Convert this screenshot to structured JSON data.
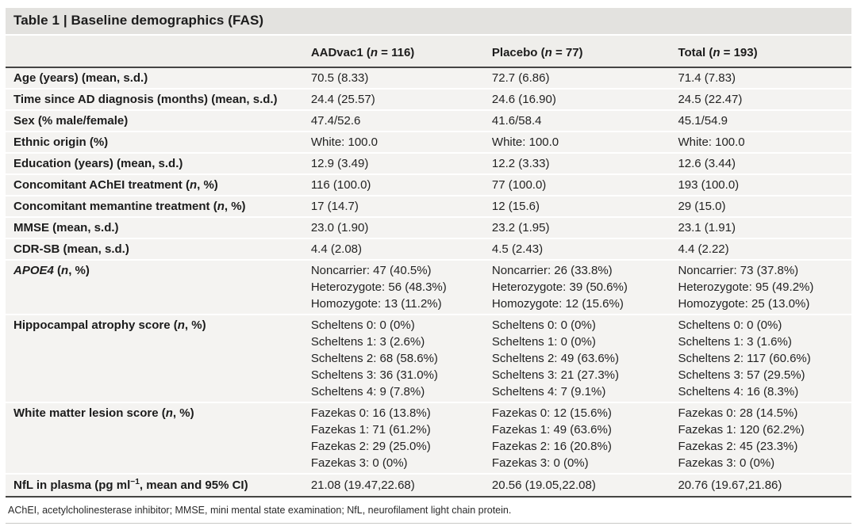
{
  "table": {
    "title": "Table 1 | Baseline demographics (FAS)",
    "columns": {
      "label_col": "",
      "col1": "AADvac1 (<i>n</i> = 116)",
      "col2": "Placebo (<i>n</i> = 77)",
      "col3": "Total (<i>n</i> = 193)"
    },
    "rows": [
      {
        "label": "Age (years) (mean, s.d.)",
        "values": [
          "70.5 (8.33)",
          "72.7 (6.86)",
          "71.4 (7.83)"
        ]
      },
      {
        "label": "Time since AD diagnosis (months) (mean, s.d.)",
        "values": [
          "24.4 (25.57)",
          "24.6 (16.90)",
          "24.5 (22.47)"
        ]
      },
      {
        "label": "Sex (% male/female)",
        "values": [
          "47.4/52.6",
          "41.6/58.4",
          "45.1/54.9"
        ]
      },
      {
        "label": "Ethnic origin (%)",
        "values": [
          "White: 100.0",
          "White: 100.0",
          "White: 100.0"
        ]
      },
      {
        "label": "Education (years) (mean, s.d.)",
        "values": [
          "12.9 (3.49)",
          "12.2 (3.33)",
          "12.6 (3.44)"
        ]
      },
      {
        "label": "Concomitant AChEI treatment (<i>n</i>, %)",
        "values": [
          "116 (100.0)",
          "77 (100.0)",
          "193 (100.0)"
        ]
      },
      {
        "label": "Concomitant memantine treatment (<i>n</i>, %)",
        "values": [
          "17 (14.7)",
          "12 (15.6)",
          "29 (15.0)"
        ]
      },
      {
        "label": "MMSE (mean, s.d.)",
        "values": [
          "23.0 (1.90)",
          "23.2 (1.95)",
          "23.1 (1.91)"
        ]
      },
      {
        "label": "CDR-SB (mean, s.d.)",
        "values": [
          "4.4 (2.08)",
          "4.5 (2.43)",
          "4.4 (2.22)"
        ]
      },
      {
        "label": "<i>APOE4</i> (<i>n</i>, %)",
        "values": [
          "Noncarrier: 47 (40.5%)\nHeterozygote: 56 (48.3%)\nHomozygote: 13 (11.2%)",
          "Noncarrier: 26 (33.8%)\nHeterozygote: 39 (50.6%)\nHomozygote: 12 (15.6%)",
          "Noncarrier: 73 (37.8%)\nHeterozygote: 95 (49.2%)\nHomozygote: 25 (13.0%)"
        ]
      },
      {
        "label": "Hippocampal atrophy score (<i>n</i>, %)",
        "values": [
          "Scheltens 0: 0 (0%)\nScheltens 1: 3 (2.6%)\nScheltens 2: 68 (58.6%)\nScheltens 3: 36 (31.0%)\nScheltens 4: 9 (7.8%)",
          "Scheltens 0: 0 (0%)\nScheltens 1: 0 (0%)\nScheltens 2: 49 (63.6%)\nScheltens 3: 21 (27.3%)\nScheltens 4: 7 (9.1%)",
          "Scheltens 0: 0 (0%)\nScheltens 1: 3 (1.6%)\nScheltens 2: 117 (60.6%)\nScheltens 3: 57 (29.5%)\nScheltens 4: 16 (8.3%)"
        ]
      },
      {
        "label": "White matter lesion score (<i>n</i>, %)",
        "values": [
          "Fazekas 0: 16 (13.8%)\nFazekas 1: 71 (61.2%)\nFazekas 2: 29 (25.0%)\nFazekas 3: 0 (0%)",
          "Fazekas 0: 12 (15.6%)\nFazekas 1: 49 (63.6%)\nFazekas 2: 16 (20.8%)\nFazekas 3: 0 (0%)",
          "Fazekas 0: 28 (14.5%)\nFazekas 1: 120 (62.2%)\nFazekas 2: 45 (23.3%)\nFazekas 3: 0 (0%)"
        ]
      },
      {
        "label": "NfL in plasma (pg ml<sup>−1</sup>, mean and 95% CI)",
        "values": [
          "21.08 (19.47,22.68)",
          "20.56 (19.05,22.08)",
          "20.76 (19.67,21.86)"
        ]
      }
    ],
    "footnote": "AChEI, acetylcholinesterase inhibitor; MMSE, mini mental state examination; NfL, neurofilament light chain protein.",
    "colors": {
      "title_band": "#e3e2df",
      "header_band": "#efeeeb",
      "row_band": "#f4f3f1",
      "rule_dark": "#454543"
    }
  }
}
